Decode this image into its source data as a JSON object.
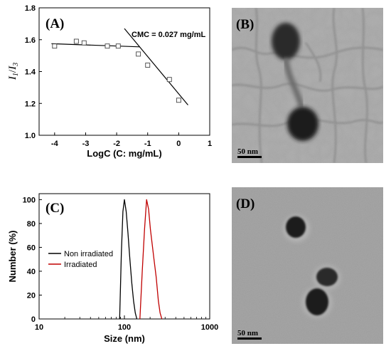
{
  "chart_data": [
    {
      "panel": "(A)",
      "type": "scatter",
      "xlabel": "LogC (C: mg/mL)",
      "ylabel_main": "I",
      "ylabel_sub1": "1",
      "ylabel_slash": "/",
      "ylabel_main2": "I",
      "ylabel_sub2": "3",
      "xlim": [
        -4.5,
        1
      ],
      "ylim": [
        1.0,
        1.8
      ],
      "xticks": [
        -4,
        -3,
        -2,
        -1,
        0,
        1
      ],
      "xtick_labels": [
        "-4",
        "-3",
        "-2",
        "-1",
        "0",
        "1"
      ],
      "yticks": [
        1.0,
        1.2,
        1.4,
        1.6,
        1.8
      ],
      "ytick_labels": [
        "1.0",
        "1.2",
        "1.4",
        "1.6",
        "1.8"
      ],
      "annotation": "CMC = 0.027 mg/mL",
      "points": [
        {
          "x": -4.0,
          "y": 1.56
        },
        {
          "x": -3.3,
          "y": 1.59
        },
        {
          "x": -3.05,
          "y": 1.58
        },
        {
          "x": -2.3,
          "y": 1.56
        },
        {
          "x": -1.95,
          "y": 1.56
        },
        {
          "x": -1.3,
          "y": 1.51
        },
        {
          "x": -1.0,
          "y": 1.44
        },
        {
          "x": -0.3,
          "y": 1.35
        },
        {
          "x": 0.0,
          "y": 1.22
        }
      ],
      "fit_lines": [
        {
          "x": [
            -4.1,
            -1.25
          ],
          "y": [
            1.575,
            1.555
          ]
        },
        {
          "x": [
            -1.75,
            0.3
          ],
          "y": [
            1.67,
            1.19
          ]
        }
      ]
    },
    {
      "panel": "(C)",
      "type": "line",
      "xlabel": "Size (nm)",
      "ylabel": "Number (%)",
      "xscale": "log",
      "xlim": [
        10,
        1000
      ],
      "ylim": [
        0,
        105
      ],
      "xticks": [
        10,
        100,
        1000
      ],
      "xtick_labels": [
        "10",
        "100",
        "1000"
      ],
      "yticks": [
        0,
        20,
        40,
        60,
        80,
        100
      ],
      "ytick_labels": [
        "0",
        "20",
        "40",
        "60",
        "80",
        "100"
      ],
      "legend_position": "center-left",
      "series": [
        {
          "name": "Non irradiated",
          "color": "#000000",
          "x": [
            88,
            92,
            96,
            100,
            105,
            110,
            116,
            122,
            128,
            134,
            140
          ],
          "y": [
            0,
            55,
            90,
            100,
            90,
            72,
            50,
            30,
            15,
            5,
            0
          ]
        },
        {
          "name": "Irradiated",
          "color": "#c00000",
          "x": [
            152,
            162,
            172,
            182,
            192,
            202,
            212,
            222,
            236,
            250,
            262,
            275
          ],
          "y": [
            0,
            40,
            75,
            100,
            92,
            75,
            62,
            50,
            35,
            15,
            5,
            0
          ]
        }
      ]
    }
  ],
  "images": {
    "B": {
      "label": "(B)",
      "scale_bar": "50 nm"
    },
    "D": {
      "label": "(D)",
      "scale_bar": "50 nm"
    }
  }
}
